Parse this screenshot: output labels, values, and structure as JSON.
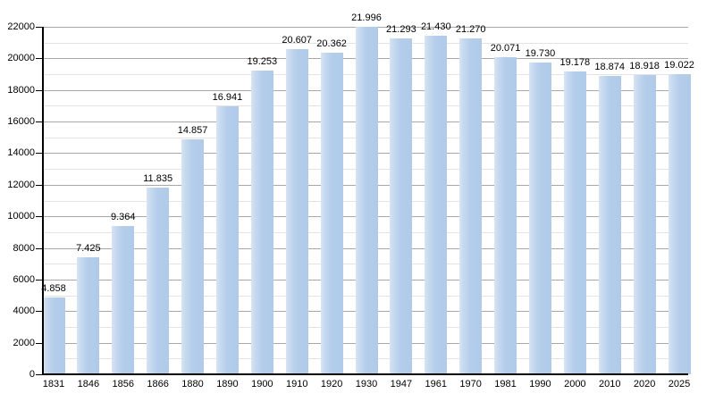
{
  "chart_data": {
    "type": "bar",
    "title": "",
    "xlabel": "",
    "ylabel": "",
    "categories": [
      "1831",
      "1846",
      "1856",
      "1866",
      "1880",
      "1890",
      "1900",
      "1910",
      "1920",
      "1930",
      "1947",
      "1961",
      "1970",
      "1981",
      "1990",
      "2000",
      "2010",
      "2020",
      "2025"
    ],
    "values": [
      4858,
      7425,
      9364,
      11835,
      14857,
      16941,
      19253,
      20607,
      20362,
      21996,
      21293,
      21430,
      21270,
      20071,
      19730,
      19178,
      18874,
      18918,
      19022
    ],
    "value_labels": [
      "4.858",
      "7.425",
      "9.364",
      "11.835",
      "14.857",
      "16.941",
      "19.253",
      "20.607",
      "20.362",
      "21.996",
      "21.293",
      "21.430",
      "21.270",
      "20.071",
      "19.730",
      "19.178",
      "18.874",
      "18.918",
      "19.022"
    ],
    "ylim": [
      0,
      22000
    ],
    "ytick_step": 2000,
    "yminor_step": 1000,
    "grid": "on",
    "legend_position": "none"
  },
  "colors": {
    "bar_main": "#b3cdea",
    "bar_edge_light": "#d7e4f4",
    "grid_major": "#a8a8a8",
    "grid_minor": "#e3e3e3",
    "axis": "#000000",
    "text": "#000000",
    "background": "#ffffff"
  }
}
